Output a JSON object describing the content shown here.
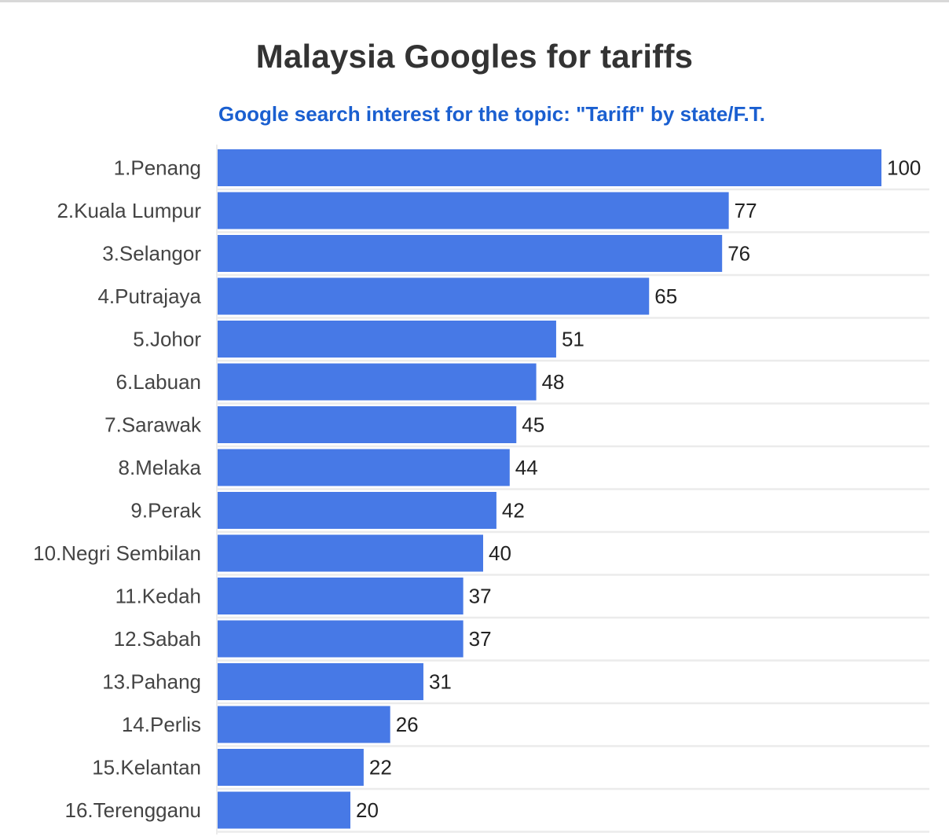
{
  "chart_data": {
    "type": "bar",
    "orientation": "horizontal",
    "title": "Malaysia Googles for tariffs",
    "subtitle": "Google search interest for the topic: \"Tariff\" by state/F.T.",
    "categories": [
      "1.Penang",
      "2.Kuala Lumpur",
      "3.Selangor",
      "4.Putrajaya",
      "5.Johor",
      "6.Labuan",
      "7.Sarawak",
      "8.Melaka",
      "9.Perak",
      "10.Negri Sembilan",
      "11.Kedah",
      "12.Sabah",
      "13.Pahang",
      "14.Perlis",
      "15.Kelantan",
      "16.Terengganu"
    ],
    "values": [
      100,
      77,
      76,
      65,
      51,
      48,
      45,
      44,
      42,
      40,
      37,
      37,
      31,
      26,
      22,
      20
    ],
    "data_labels": [
      "100",
      "77",
      "76",
      "65",
      "51",
      "48",
      "45",
      "44",
      "42",
      "40",
      "37",
      "37",
      "31",
      "26",
      "22",
      "20"
    ],
    "xlim": [
      0,
      100
    ],
    "grid": true,
    "legend": "none",
    "bar_color": "#4779e6",
    "grid_color": "#ebebeb",
    "title_color": "#333333",
    "subtitle_color": "#1a5fd0"
  }
}
